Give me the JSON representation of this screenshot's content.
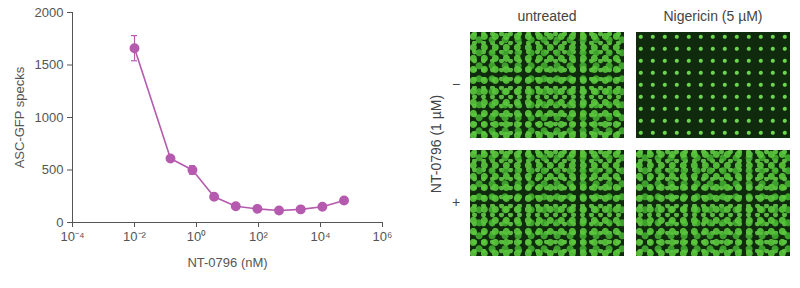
{
  "chart_data": {
    "type": "line",
    "x_label": "NT-0796 (nM)",
    "y_label": "ASC-GFP specks",
    "log": "x",
    "x": [
      0.01,
      0.145,
      0.74,
      3.7,
      18.5,
      92,
      460,
      2300,
      11500,
      57500
    ],
    "values": [
      1660,
      610,
      500,
      245,
      155,
      130,
      115,
      125,
      150,
      210
    ],
    "errors": [
      120,
      null,
      40,
      null,
      null,
      null,
      null,
      null,
      null,
      null
    ],
    "color": "#b55aae",
    "marker": "circle",
    "xlim": [
      0.0001,
      1000000
    ],
    "xticks": [
      {
        "value": 0.0001,
        "label": "10⁻⁴"
      },
      {
        "value": 0.01,
        "label": "10⁻²"
      },
      {
        "value": 1,
        "label": "10⁰"
      },
      {
        "value": 100,
        "label": "10²"
      },
      {
        "value": 10000,
        "label": "10⁴"
      },
      {
        "value": 1000000,
        "label": "10⁶"
      }
    ],
    "ylim": [
      0,
      2000
    ],
    "yticks": [
      0,
      500,
      1000,
      1500,
      2000
    ]
  },
  "image_panel": {
    "column_titles": [
      "untreated",
      "Nigericin (5 µM)"
    ],
    "row_title": "NT-0796 (1 µM)",
    "row_labels": [
      "−",
      "+"
    ]
  }
}
